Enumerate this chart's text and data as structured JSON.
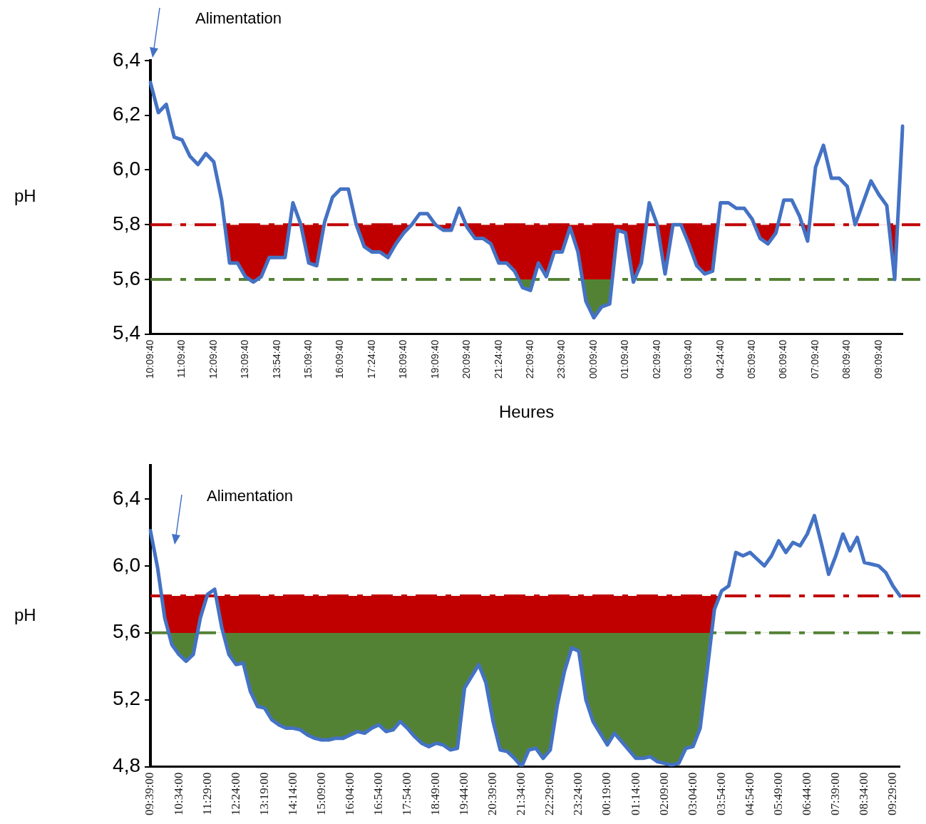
{
  "chart_data": [
    {
      "type": "line",
      "xlabel": "Heures",
      "ylabel": "pH",
      "categories": [
        "10:09:40",
        null,
        null,
        null,
        "11:09:40",
        null,
        null,
        null,
        "12:09:40",
        null,
        null,
        null,
        "13:09:40",
        null,
        null,
        null,
        "13:54:40",
        null,
        null,
        null,
        "15:09:40",
        null,
        null,
        null,
        "16:09:40",
        null,
        null,
        null,
        "17:24:40",
        null,
        null,
        null,
        "18:09:40",
        null,
        null,
        null,
        "19:09:40",
        null,
        null,
        null,
        "20:09:40",
        null,
        null,
        null,
        "21:24:40",
        null,
        null,
        null,
        "22:09:40",
        null,
        null,
        null,
        "23:09:40",
        null,
        null,
        null,
        "00:09:40",
        null,
        null,
        null,
        "01:09:40",
        null,
        null,
        null,
        "02:09:40",
        null,
        null,
        null,
        "03:09:40",
        null,
        null,
        null,
        "04:24:40",
        null,
        null,
        null,
        "05:09:40",
        null,
        null,
        null,
        "06:09:40",
        null,
        null,
        null,
        "07:09:40",
        null,
        null,
        null,
        "08:09:40",
        null,
        null,
        null,
        "09:09:40",
        null,
        null,
        null
      ],
      "series": [
        {
          "color": "#4472c4",
          "values": [
            6.32,
            6.21,
            6.24,
            6.12,
            6.11,
            6.05,
            6.02,
            6.06,
            6.03,
            5.89,
            5.66,
            5.66,
            5.61,
            5.59,
            5.61,
            5.68,
            5.68,
            5.68,
            5.88,
            5.8,
            5.66,
            5.65,
            5.81,
            5.9,
            5.93,
            5.93,
            5.8,
            5.72,
            5.7,
            5.7,
            5.68,
            5.73,
            5.77,
            5.8,
            5.84,
            5.84,
            5.8,
            5.78,
            5.78,
            5.86,
            5.79,
            5.75,
            5.75,
            5.73,
            5.66,
            5.66,
            5.63,
            5.57,
            5.56,
            5.66,
            5.61,
            5.7,
            5.7,
            5.79,
            5.7,
            5.52,
            5.46,
            5.5,
            5.51,
            5.78,
            5.77,
            5.59,
            5.66,
            5.88,
            5.8,
            5.62,
            5.8,
            5.8,
            5.73,
            5.65,
            5.62,
            5.63,
            5.88,
            5.88,
            5.86,
            5.86,
            5.82,
            5.75,
            5.73,
            5.77,
            5.89,
            5.89,
            5.83,
            5.74,
            6.01,
            6.09,
            5.97,
            5.97,
            5.94,
            5.8,
            5.88,
            5.96,
            5.91,
            5.87,
            5.6,
            6.16
          ]
        }
      ],
      "ylim": [
        5.4,
        6.4
      ],
      "yticks": [
        {
          "value": 5.4,
          "label": "5,4"
        },
        {
          "value": 5.6,
          "label": "5,6"
        },
        {
          "value": 5.8,
          "label": "5,8"
        },
        {
          "value": 6.0,
          "label": "6,0"
        },
        {
          "value": 6.2,
          "label": "6,2"
        },
        {
          "value": 6.4,
          "label": "6,4"
        }
      ],
      "ref_lines": [
        {
          "axis": "y",
          "value": 5.8,
          "color": "#c00000",
          "line_style": "dashdot"
        },
        {
          "axis": "y",
          "value": 5.6,
          "color": "#548235",
          "line_style": "dashdot"
        }
      ],
      "annotations": [
        "Alimentation"
      ],
      "grid": false,
      "legend": false
    },
    {
      "type": "line",
      "ylabel": "pH",
      "categories": [
        "09:39:00",
        null,
        null,
        null,
        "10:34:00",
        null,
        null,
        null,
        "11:29:00",
        null,
        null,
        null,
        "12:24:00",
        null,
        null,
        null,
        "13:19:00",
        null,
        null,
        null,
        "14:14:00",
        null,
        null,
        null,
        "15:09:00",
        null,
        null,
        null,
        "16:04:00",
        null,
        null,
        null,
        "16:54:00",
        null,
        null,
        null,
        "17:54:00",
        null,
        null,
        null,
        "18:49:00",
        null,
        null,
        null,
        "19:44:00",
        null,
        null,
        null,
        "20:39:00",
        null,
        null,
        null,
        "21:34:00",
        null,
        null,
        null,
        "22:29:00",
        null,
        null,
        null,
        "23:24:00",
        null,
        null,
        null,
        "00:19:00",
        null,
        null,
        null,
        "01:14:00",
        null,
        null,
        null,
        "02:09:00",
        null,
        null,
        null,
        "03:04:00",
        null,
        null,
        null,
        "03:54:00",
        null,
        null,
        null,
        "04:54:00",
        null,
        null,
        null,
        "05:49:00",
        null,
        null,
        null,
        "06:44:00",
        null,
        null,
        null,
        "07:39:00",
        null,
        null,
        null,
        "08:34:00",
        null,
        null,
        null,
        "09:29:00",
        null
      ],
      "series": [
        {
          "color": "#4472c4",
          "values": [
            6.21,
            5.99,
            5.69,
            5.53,
            5.47,
            5.43,
            5.47,
            5.69,
            5.83,
            5.86,
            5.63,
            5.47,
            5.41,
            5.42,
            5.25,
            5.16,
            5.15,
            5.08,
            5.05,
            5.03,
            5.03,
            5.02,
            4.99,
            4.97,
            4.96,
            4.96,
            4.97,
            4.97,
            4.99,
            5.01,
            5.0,
            5.03,
            5.05,
            5.01,
            5.02,
            5.07,
            5.03,
            4.98,
            4.94,
            4.92,
            4.94,
            4.93,
            4.9,
            4.91,
            5.27,
            5.34,
            5.41,
            5.3,
            5.07,
            4.9,
            4.89,
            4.85,
            4.8,
            4.9,
            4.91,
            4.85,
            4.9,
            5.17,
            5.37,
            5.51,
            5.49,
            5.2,
            5.07,
            5.0,
            4.93,
            5.0,
            4.95,
            4.9,
            4.85,
            4.85,
            4.86,
            4.83,
            4.82,
            4.81,
            4.82,
            4.91,
            4.92,
            5.03,
            5.38,
            5.74,
            5.85,
            5.88,
            6.08,
            6.06,
            6.08,
            6.04,
            6.0,
            6.06,
            6.15,
            6.08,
            6.14,
            6.12,
            6.19,
            6.3,
            6.13,
            5.95,
            6.06,
            6.19,
            6.09,
            6.17,
            6.02,
            6.01,
            6.0,
            5.96,
            5.88,
            5.82
          ]
        }
      ],
      "ylim": [
        4.8,
        6.6
      ],
      "yticks": [
        {
          "value": 4.8,
          "label": "4,8"
        },
        {
          "value": 5.2,
          "label": "5,2"
        },
        {
          "value": 5.6,
          "label": "5,6"
        },
        {
          "value": 6.0,
          "label": "6,0"
        },
        {
          "value": 6.4,
          "label": "6,4"
        }
      ],
      "ref_lines": [
        {
          "axis": "y",
          "value": 5.82,
          "color": "#c00000",
          "line_style": "dashdot"
        },
        {
          "axis": "y",
          "value": 5.6,
          "color": "#548235",
          "line_style": "dashdot"
        }
      ],
      "annotations": [
        "Alimentation"
      ],
      "grid": false,
      "legend": false
    }
  ]
}
